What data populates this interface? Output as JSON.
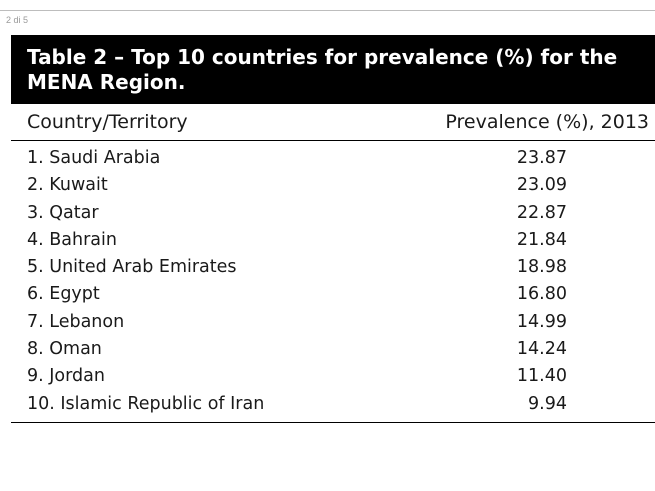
{
  "page_indicator": "2 di 5",
  "table": {
    "title": "Table 2 – Top 10 countries for prevalence (%) for the MENA Region.",
    "columns": {
      "country": "Country/Territory",
      "prevalence": "Prevalence (%), 2013"
    },
    "rows": [
      {
        "country": "1. Saudi Arabia",
        "value": "23.87"
      },
      {
        "country": "2. Kuwait",
        "value": "23.09"
      },
      {
        "country": "3. Qatar",
        "value": "22.87"
      },
      {
        "country": "4. Bahrain",
        "value": "21.84"
      },
      {
        "country": "5. United Arab Emirates",
        "value": "18.98"
      },
      {
        "country": "6. Egypt",
        "value": "16.80"
      },
      {
        "country": "7. Lebanon",
        "value": "14.99"
      },
      {
        "country": "8. Oman",
        "value": "14.24"
      },
      {
        "country": "9. Jordan",
        "value": "11.40"
      },
      {
        "country": "10. Islamic Republic of Iran",
        "value": "9.94"
      }
    ]
  }
}
